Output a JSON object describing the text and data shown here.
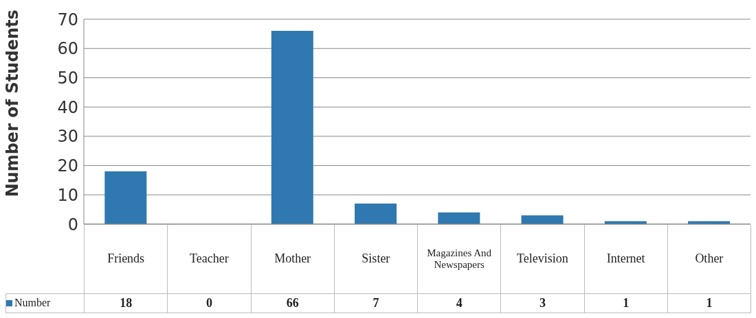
{
  "chart_data": {
    "type": "bar",
    "ylabel": "Number of Students",
    "categories": [
      "Friends",
      "Teacher",
      "Mother",
      "Sister",
      "Magazines And Newspapers",
      "Television",
      "Internet",
      "Other"
    ],
    "series": [
      {
        "name": "Number",
        "color": "#2f78b0",
        "values": [
          18,
          0,
          66,
          7,
          4,
          3,
          1,
          1
        ]
      }
    ],
    "ylim": [
      0,
      70
    ],
    "yticks": [
      0,
      10,
      20,
      30,
      40,
      50,
      60,
      70
    ],
    "grid": "y",
    "legend": "bottom",
    "data_labels": true
  }
}
